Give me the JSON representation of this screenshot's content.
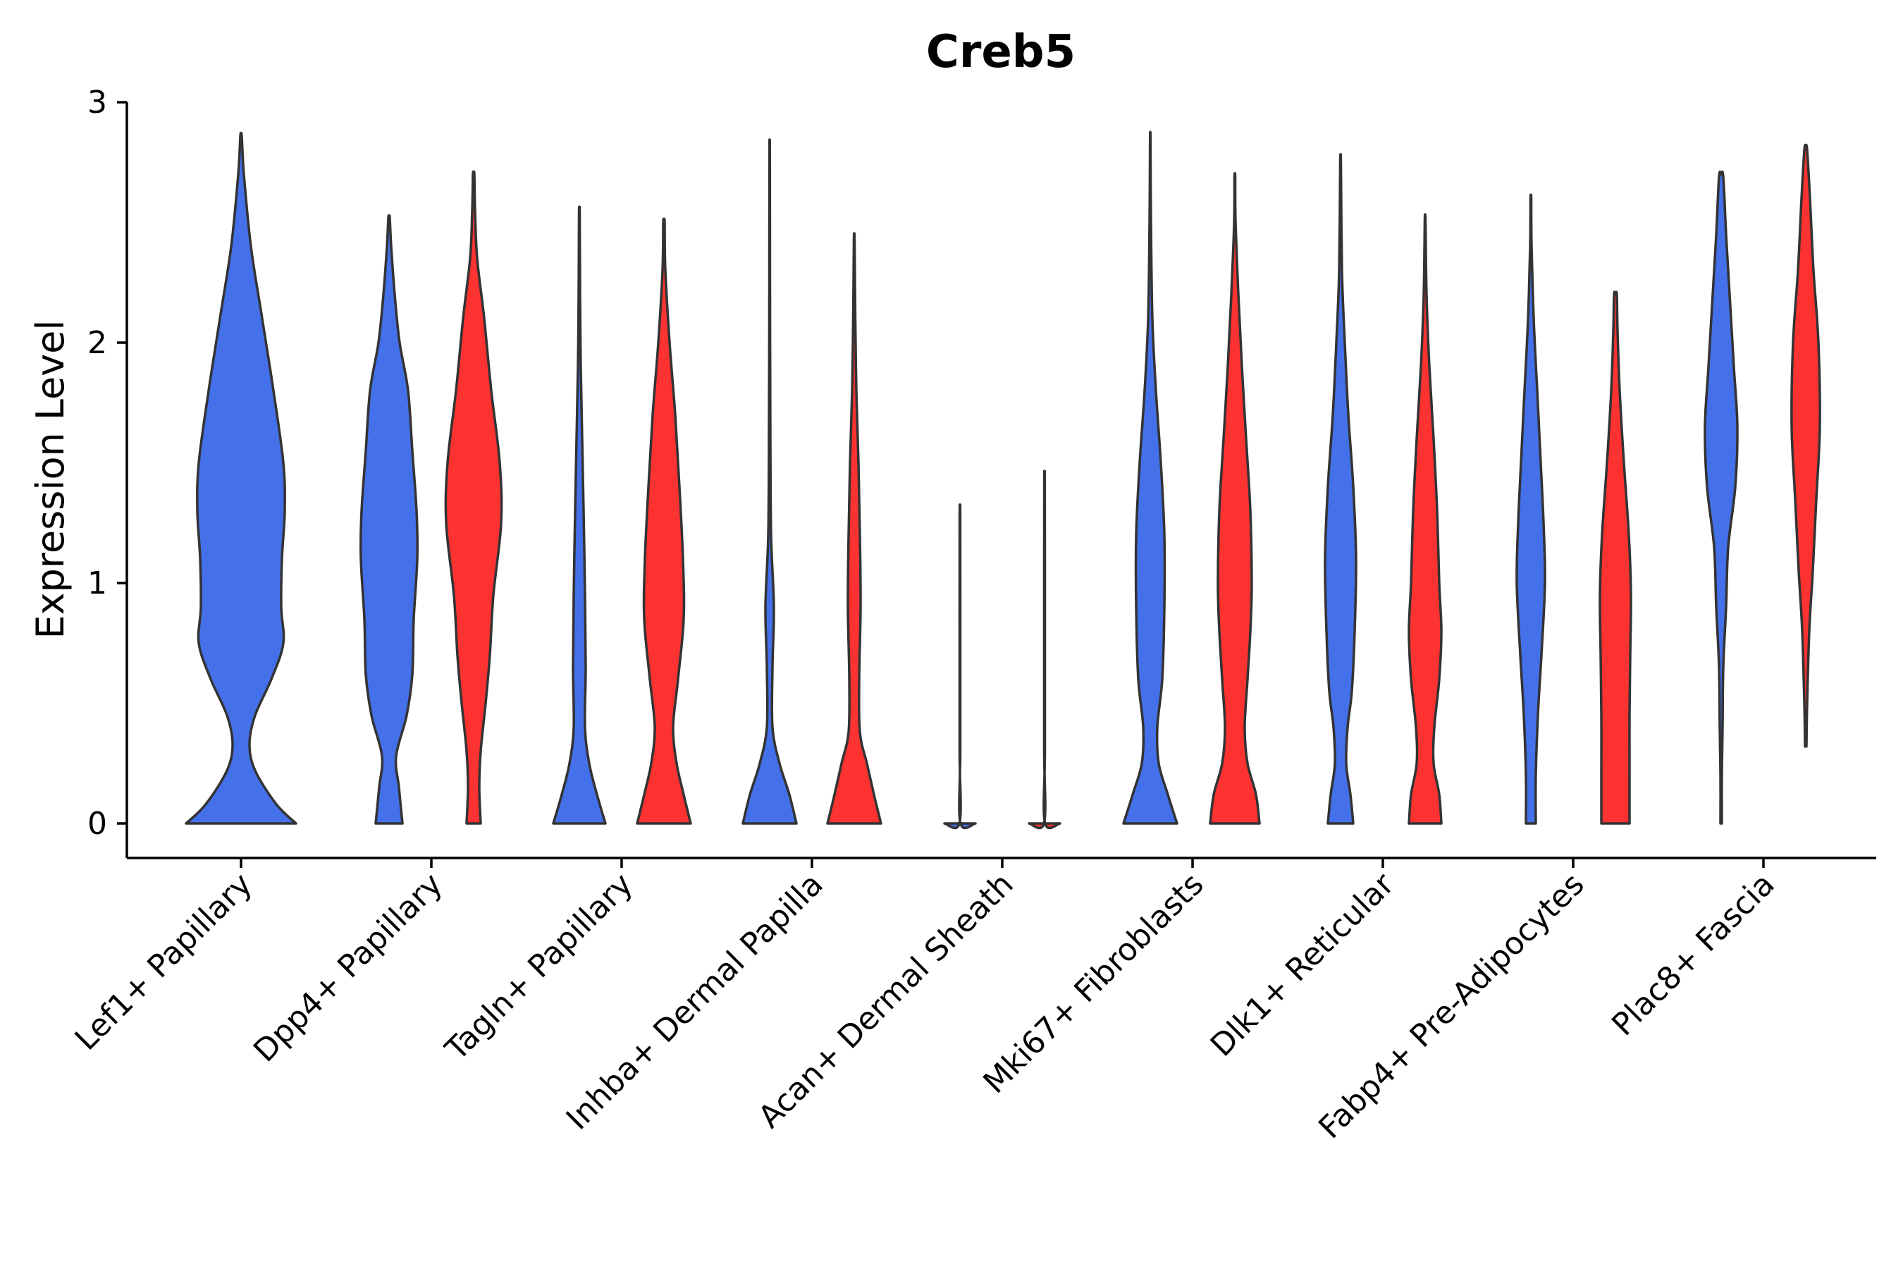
{
  "chart_data": {
    "type": "violin",
    "title": "Creb5",
    "xlabel": "",
    "ylabel": "Expression Level",
    "ylim": [
      -0.15,
      3.0
    ],
    "yticks": [
      0,
      1,
      2,
      3
    ],
    "ytick_labels": [
      "0",
      "1",
      "2",
      "3"
    ],
    "grid": false,
    "legend": "none",
    "series_colors": {
      "blue": "#4470EA",
      "red": "#FF3232"
    },
    "categories": [
      "Lef1+ Papillary",
      "Dpp4+ Papillary",
      "Tagln+ Papillary",
      "Inhba+ Dermal Papilla",
      "Acan+ Dermal Sheath",
      "Mki67+ Fibroblasts",
      "Dlk1+ Reticular",
      "Fabp4+ Pre-Adipocytes",
      "Plac8+ Fascia"
    ],
    "violins": [
      {
        "category": "Lef1+ Papillary",
        "series": "blue",
        "max": 2.86,
        "profile": [
          [
            0,
            0.78
          ],
          [
            0.08,
            0.5
          ],
          [
            0.22,
            0.2
          ],
          [
            0.33,
            0.12
          ],
          [
            0.45,
            0.2
          ],
          [
            0.6,
            0.43
          ],
          [
            0.75,
            0.6
          ],
          [
            0.9,
            0.57
          ],
          [
            1.1,
            0.58
          ],
          [
            1.3,
            0.62
          ],
          [
            1.5,
            0.6
          ],
          [
            1.8,
            0.46
          ],
          [
            2.1,
            0.3
          ],
          [
            2.4,
            0.14
          ],
          [
            2.7,
            0.04
          ],
          [
            2.86,
            0.01
          ]
        ]
      },
      {
        "category": "Dpp4+ Papillary",
        "series": "blue",
        "max": 2.52,
        "profile": [
          [
            0,
            0.19
          ],
          [
            0.15,
            0.14
          ],
          [
            0.28,
            0.1
          ],
          [
            0.45,
            0.25
          ],
          [
            0.62,
            0.33
          ],
          [
            0.85,
            0.35
          ],
          [
            1.1,
            0.4
          ],
          [
            1.3,
            0.39
          ],
          [
            1.55,
            0.33
          ],
          [
            1.8,
            0.27
          ],
          [
            2.0,
            0.15
          ],
          [
            2.2,
            0.08
          ],
          [
            2.4,
            0.03
          ],
          [
            2.52,
            0.01
          ]
        ]
      },
      {
        "category": "Dpp4+ Papillary",
        "series": "red",
        "max": 2.7,
        "profile": [
          [
            0,
            0.1
          ],
          [
            0.15,
            0.08
          ],
          [
            0.3,
            0.1
          ],
          [
            0.5,
            0.17
          ],
          [
            0.7,
            0.23
          ],
          [
            0.95,
            0.28
          ],
          [
            1.25,
            0.39
          ],
          [
            1.5,
            0.37
          ],
          [
            1.8,
            0.25
          ],
          [
            2.1,
            0.15
          ],
          [
            2.35,
            0.05
          ],
          [
            2.55,
            0.02
          ],
          [
            2.7,
            0.01
          ]
        ]
      },
      {
        "category": "Tagln+ Papillary",
        "series": "blue",
        "max": 2.54,
        "profile": [
          [
            0,
            0.37
          ],
          [
            0.12,
            0.25
          ],
          [
            0.25,
            0.14
          ],
          [
            0.4,
            0.08
          ],
          [
            0.65,
            0.09
          ],
          [
            0.95,
            0.08
          ],
          [
            1.3,
            0.06
          ],
          [
            1.6,
            0.04
          ],
          [
            1.9,
            0.02
          ],
          [
            2.2,
            0.01
          ],
          [
            2.54,
            0.005
          ]
        ]
      },
      {
        "category": "Tagln+ Papillary",
        "series": "red",
        "max": 2.5,
        "profile": [
          [
            0,
            0.38
          ],
          [
            0.12,
            0.28
          ],
          [
            0.25,
            0.18
          ],
          [
            0.4,
            0.13
          ],
          [
            0.6,
            0.2
          ],
          [
            0.85,
            0.28
          ],
          [
            1.1,
            0.27
          ],
          [
            1.4,
            0.22
          ],
          [
            1.7,
            0.16
          ],
          [
            2.0,
            0.08
          ],
          [
            2.3,
            0.02
          ],
          [
            2.5,
            0.01
          ]
        ]
      },
      {
        "category": "Inhba+ Dermal Papilla",
        "series": "blue",
        "max": 2.8,
        "profile": [
          [
            0,
            0.38
          ],
          [
            0.12,
            0.28
          ],
          [
            0.25,
            0.14
          ],
          [
            0.4,
            0.04
          ],
          [
            0.65,
            0.04
          ],
          [
            0.9,
            0.06
          ],
          [
            1.2,
            0.02
          ],
          [
            1.6,
            0.01
          ],
          [
            2.2,
            0.005
          ],
          [
            2.8,
            0.003
          ]
        ]
      },
      {
        "category": "Inhba+ Dermal Papilla",
        "series": "red",
        "max": 2.43,
        "profile": [
          [
            0,
            0.38
          ],
          [
            0.12,
            0.28
          ],
          [
            0.25,
            0.18
          ],
          [
            0.38,
            0.08
          ],
          [
            0.6,
            0.07
          ],
          [
            0.9,
            0.09
          ],
          [
            1.2,
            0.08
          ],
          [
            1.5,
            0.06
          ],
          [
            1.8,
            0.03
          ],
          [
            2.1,
            0.015
          ],
          [
            2.43,
            0.005
          ]
        ]
      },
      {
        "category": "Acan+ Dermal Sheath",
        "series": "blue",
        "max": 1.29,
        "profile": [
          [
            0,
            0.22
          ],
          [
            0.004,
            0.005
          ],
          [
            0.3,
            0.005
          ],
          [
            0.8,
            0.005
          ],
          [
            1.29,
            0.004
          ]
        ]
      },
      {
        "category": "Acan+ Dermal Sheath",
        "series": "red",
        "max": 1.42,
        "profile": [
          [
            0,
            0.22
          ],
          [
            0.004,
            0.005
          ],
          [
            0.3,
            0.005
          ],
          [
            0.8,
            0.005
          ],
          [
            1.42,
            0.004
          ]
        ]
      },
      {
        "category": "Mki67+ Fibroblasts",
        "series": "blue",
        "max": 2.85,
        "profile": [
          [
            0,
            0.38
          ],
          [
            0.12,
            0.25
          ],
          [
            0.25,
            0.12
          ],
          [
            0.4,
            0.1
          ],
          [
            0.6,
            0.17
          ],
          [
            0.9,
            0.2
          ],
          [
            1.2,
            0.2
          ],
          [
            1.5,
            0.15
          ],
          [
            1.8,
            0.08
          ],
          [
            2.1,
            0.03
          ],
          [
            2.5,
            0.01
          ],
          [
            2.85,
            0.003
          ]
        ]
      },
      {
        "category": "Mki67+ Fibroblasts",
        "series": "red",
        "max": 2.69,
        "profile": [
          [
            0,
            0.35
          ],
          [
            0.12,
            0.3
          ],
          [
            0.25,
            0.18
          ],
          [
            0.4,
            0.14
          ],
          [
            0.6,
            0.18
          ],
          [
            0.8,
            0.22
          ],
          [
            1.0,
            0.24
          ],
          [
            1.3,
            0.22
          ],
          [
            1.6,
            0.16
          ],
          [
            1.9,
            0.1
          ],
          [
            2.2,
            0.05
          ],
          [
            2.5,
            0.01
          ],
          [
            2.69,
            0.005
          ]
        ]
      },
      {
        "category": "Dlk1+ Reticular",
        "series": "blue",
        "max": 2.75,
        "profile": [
          [
            0,
            0.18
          ],
          [
            0.12,
            0.14
          ],
          [
            0.25,
            0.08
          ],
          [
            0.4,
            0.1
          ],
          [
            0.55,
            0.16
          ],
          [
            0.8,
            0.2
          ],
          [
            1.1,
            0.22
          ],
          [
            1.4,
            0.18
          ],
          [
            1.7,
            0.11
          ],
          [
            2.0,
            0.06
          ],
          [
            2.3,
            0.02
          ],
          [
            2.75,
            0.005
          ]
        ]
      },
      {
        "category": "Dlk1+ Reticular",
        "series": "red",
        "max": 2.51,
        "profile": [
          [
            0,
            0.23
          ],
          [
            0.12,
            0.2
          ],
          [
            0.25,
            0.12
          ],
          [
            0.4,
            0.13
          ],
          [
            0.6,
            0.2
          ],
          [
            0.8,
            0.23
          ],
          [
            1.0,
            0.2
          ],
          [
            1.3,
            0.17
          ],
          [
            1.6,
            0.12
          ],
          [
            1.9,
            0.06
          ],
          [
            2.2,
            0.02
          ],
          [
            2.51,
            0.005
          ]
        ]
      },
      {
        "category": "Fabp4+ Pre-Adipocytes",
        "series": "blue",
        "max": 2.6,
        "profile": [
          [
            0,
            0.07
          ],
          [
            0.2,
            0.07
          ],
          [
            0.45,
            0.1
          ],
          [
            0.7,
            0.15
          ],
          [
            1.0,
            0.2
          ],
          [
            1.25,
            0.18
          ],
          [
            1.5,
            0.14
          ],
          [
            1.8,
            0.09
          ],
          [
            2.1,
            0.04
          ],
          [
            2.4,
            0.01
          ],
          [
            2.6,
            0.005
          ]
        ]
      },
      {
        "category": "Fabp4+ Pre-Adipocytes",
        "series": "red",
        "max": 2.2,
        "profile": [
          [
            0,
            0.2
          ],
          [
            0.2,
            0.2
          ],
          [
            0.45,
            0.2
          ],
          [
            0.7,
            0.21
          ],
          [
            0.95,
            0.22
          ],
          [
            1.2,
            0.19
          ],
          [
            1.5,
            0.12
          ],
          [
            1.8,
            0.06
          ],
          [
            2.05,
            0.03
          ],
          [
            2.2,
            0.02
          ]
        ]
      },
      {
        "category": "Plac8+ Fascia",
        "series": "blue",
        "max": 2.7,
        "profile": [
          [
            0,
            0.01
          ],
          [
            0.2,
            0.01
          ],
          [
            0.4,
            0.02
          ],
          [
            0.65,
            0.03
          ],
          [
            0.9,
            0.07
          ],
          [
            1.15,
            0.1
          ],
          [
            1.4,
            0.2
          ],
          [
            1.65,
            0.23
          ],
          [
            1.9,
            0.18
          ],
          [
            2.2,
            0.12
          ],
          [
            2.45,
            0.07
          ],
          [
            2.69,
            0.03
          ],
          [
            2.7,
            0.0
          ]
        ]
      },
      {
        "category": "Plac8+ Fascia",
        "series": "red",
        "max": 2.82,
        "profile": [
          [
            0.32,
            0.01
          ],
          [
            0.5,
            0.02
          ],
          [
            0.8,
            0.05
          ],
          [
            1.05,
            0.1
          ],
          [
            1.35,
            0.15
          ],
          [
            1.65,
            0.2
          ],
          [
            2.0,
            0.18
          ],
          [
            2.3,
            0.11
          ],
          [
            2.6,
            0.06
          ],
          [
            2.8,
            0.02
          ],
          [
            2.82,
            0.0
          ]
        ]
      }
    ]
  }
}
